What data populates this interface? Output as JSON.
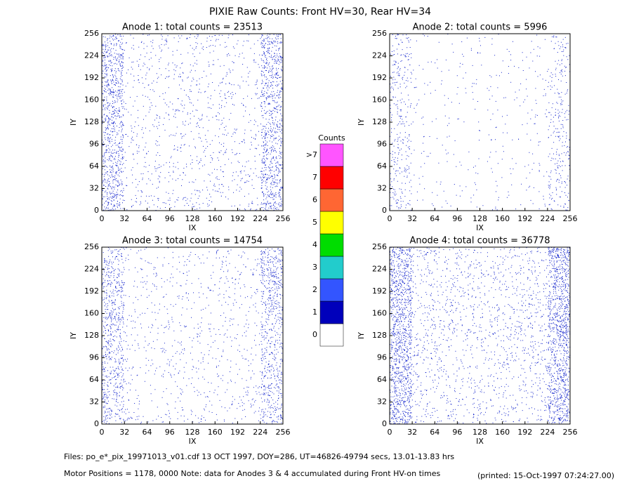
{
  "title": "PIXIE Raw Counts:  Front HV=30, Rear HV=34",
  "chart_data": [
    {
      "type": "heatmap",
      "title": "Anode 1: total counts = 23513",
      "xlabel": "IX",
      "ylabel": "IY",
      "xlim": [
        0,
        256
      ],
      "ylim": [
        0,
        256
      ],
      "xticks": [
        0,
        32,
        64,
        96,
        128,
        160,
        192,
        224,
        256
      ],
      "yticks": [
        0,
        32,
        64,
        96,
        128,
        160,
        192,
        224,
        256
      ]
    },
    {
      "type": "heatmap",
      "title": "Anode 2: total counts = 5996",
      "xlabel": "IX",
      "ylabel": "IY",
      "xlim": [
        0,
        256
      ],
      "ylim": [
        0,
        256
      ],
      "xticks": [
        0,
        32,
        64,
        96,
        128,
        160,
        192,
        224,
        256
      ],
      "yticks": [
        0,
        32,
        64,
        96,
        128,
        160,
        192,
        224,
        256
      ]
    },
    {
      "type": "heatmap",
      "title": "Anode 3: total counts = 14754",
      "xlabel": "IX",
      "ylabel": "IY",
      "xlim": [
        0,
        256
      ],
      "ylim": [
        0,
        256
      ],
      "xticks": [
        0,
        32,
        64,
        96,
        128,
        160,
        192,
        224,
        256
      ],
      "yticks": [
        0,
        32,
        64,
        96,
        128,
        160,
        192,
        224,
        256
      ]
    },
    {
      "type": "heatmap",
      "title": "Anode 4: total counts = 36778",
      "xlabel": "IX",
      "ylabel": "IY",
      "xlim": [
        0,
        256
      ],
      "ylim": [
        0,
        256
      ],
      "xticks": [
        0,
        32,
        64,
        96,
        128,
        160,
        192,
        224,
        256
      ],
      "yticks": [
        0,
        32,
        64,
        96,
        128,
        160,
        192,
        224,
        256
      ]
    }
  ],
  "colorbar": {
    "title": "Counts",
    "labels": [
      "0",
      "1",
      "2",
      "3",
      "4",
      "5",
      "6",
      "7",
      ">7"
    ],
    "colors": [
      "#ffffff",
      "#0000bb",
      "#3355ff",
      "#22cccc",
      "#00dd00",
      "#ffff00",
      "#ff6633",
      "#ff0000",
      "#ff55ff"
    ]
  },
  "footer": {
    "files": "Files: po_e*_pix_19971013_v01.cdf    13 OCT 1997, DOY=286, UT=46826-49794 secs, 13.01-13.83 hrs",
    "motor": "Motor Positions = 1178, 0000   Note: data for Anodes 3 & 4 accumulated during Front HV-on times",
    "printed": "(printed: 15-Oct-1997 07:24:27.00)"
  }
}
